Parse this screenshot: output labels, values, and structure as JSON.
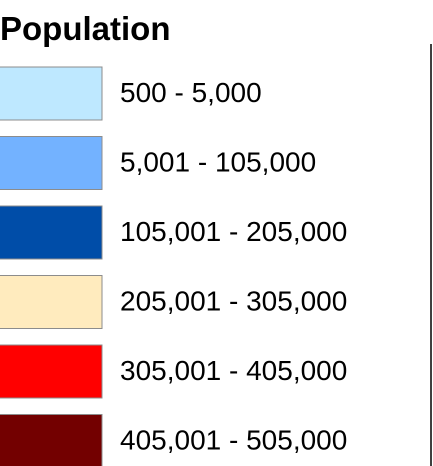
{
  "legend": {
    "title": "Population",
    "items": [
      {
        "label": "500 - 5,000",
        "color": "#bee8ff"
      },
      {
        "label": "5,001 - 105,000",
        "color": "#73b2ff"
      },
      {
        "label": "105,001 - 205,000",
        "color": "#004da8"
      },
      {
        "label": "205,001 - 305,000",
        "color": "#ffebbe"
      },
      {
        "label": "305,001 - 405,000",
        "color": "#ff0000"
      },
      {
        "label": "405,001 - 505,000",
        "color": "#730000"
      }
    ]
  }
}
